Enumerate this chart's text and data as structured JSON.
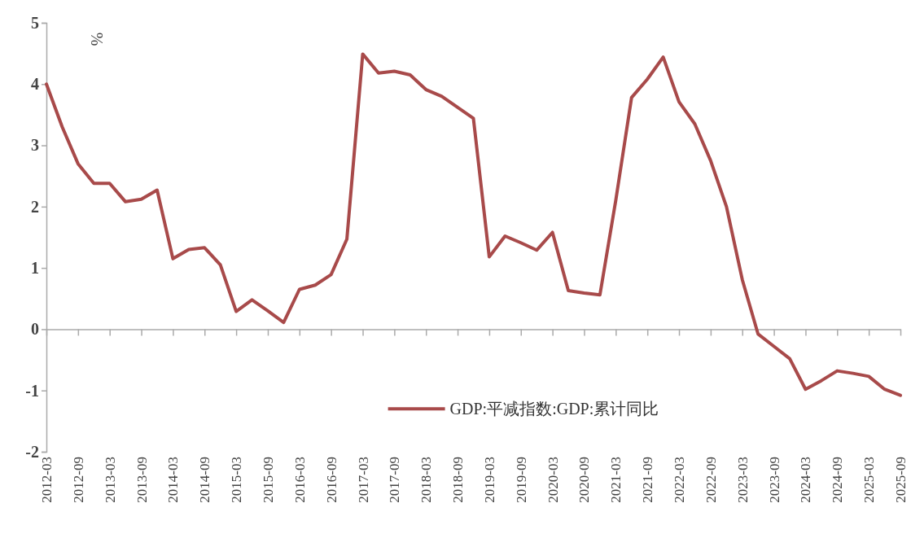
{
  "chart_data": {
    "type": "line",
    "ylabel": "%",
    "categories": [
      "2012-03",
      null,
      "2012-09",
      null,
      "2013-03",
      null,
      "2013-09",
      null,
      "2014-03",
      null,
      "2014-09",
      null,
      "2015-03",
      null,
      "2015-09",
      null,
      "2016-03",
      null,
      "2016-09",
      null,
      "2017-03",
      null,
      "2017-09",
      null,
      "2018-03",
      null,
      "2018-09",
      null,
      "2019-03",
      null,
      "2019-09",
      null,
      "2020-03",
      null,
      "2020-09",
      null,
      "2021-03",
      null,
      "2021-09",
      null,
      "2022-03",
      null,
      "2022-09",
      null,
      "2023-03",
      null,
      "2023-09",
      null,
      "2024-03",
      null,
      "2024-09",
      null,
      "2025-03",
      null,
      "2025-09"
    ],
    "series": [
      {
        "name": "GDP:平减指数:GDP:累计同比",
        "color": "#a84a4a",
        "values": [
          4.0,
          3.3,
          2.7,
          2.38,
          2.38,
          2.08,
          2.12,
          2.27,
          1.15,
          1.3,
          1.33,
          1.05,
          0.29,
          0.48,
          0.3,
          0.11,
          0.65,
          0.72,
          0.89,
          1.47,
          4.49,
          4.18,
          4.21,
          4.15,
          3.91,
          3.8,
          3.62,
          3.44,
          1.18,
          1.52,
          1.41,
          1.29,
          1.58,
          0.63,
          0.59,
          0.56,
          2.1,
          3.78,
          4.08,
          4.44,
          3.71,
          3.35,
          2.75,
          2.0,
          0.81,
          -0.08,
          -0.28,
          -0.48,
          -0.98,
          -0.84,
          -0.68,
          -0.72,
          -0.77,
          -0.98,
          -1.08
        ]
      }
    ],
    "ylim": [
      -2,
      5
    ],
    "yticks": [
      -2,
      -1,
      0,
      1,
      2,
      3,
      4,
      5
    ],
    "legend": "bottom",
    "marker": "none",
    "line_style": "solid"
  }
}
